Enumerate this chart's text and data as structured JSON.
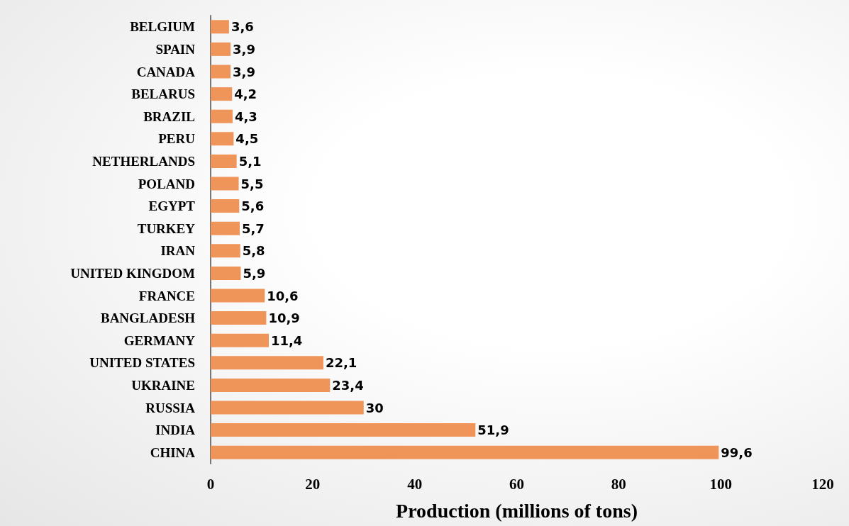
{
  "chart_data": {
    "type": "bar",
    "orientation": "horizontal",
    "xlabel": "Production (millions of tons)",
    "categories": [
      "BELGIUM",
      "SPAIN",
      "CANADA",
      "BELARUS",
      "BRAZIL",
      "PERU",
      "NETHERLANDS",
      "POLAND",
      "EGYPT",
      "TURKEY",
      "IRAN",
      "UNITED KINGDOM",
      "FRANCE",
      "BANGLADESH",
      "GERMANY",
      "UNITED STATES",
      "UKRAINE",
      "RUSSIA",
      "INDIA",
      "CHINA"
    ],
    "values": [
      3.6,
      3.9,
      3.9,
      4.2,
      4.3,
      4.5,
      5.1,
      5.5,
      5.6,
      5.7,
      5.8,
      5.9,
      10.6,
      10.9,
      11.4,
      22.1,
      23.4,
      30,
      51.9,
      99.6
    ],
    "value_labels": [
      "3,6",
      "3,9",
      "3,9",
      "4,2",
      "4,3",
      "4,5",
      "5,1",
      "5,5",
      "5,6",
      "5,7",
      "5,8",
      "5,9",
      "10,6",
      "10,9",
      "11,4",
      "22,1",
      "23,4",
      "30",
      "51,9",
      "99,6"
    ],
    "color": "#f0955a",
    "xlim": [
      0,
      120
    ],
    "xticks": [
      0,
      20,
      40,
      60,
      80,
      100,
      120
    ],
    "grid": false
  }
}
